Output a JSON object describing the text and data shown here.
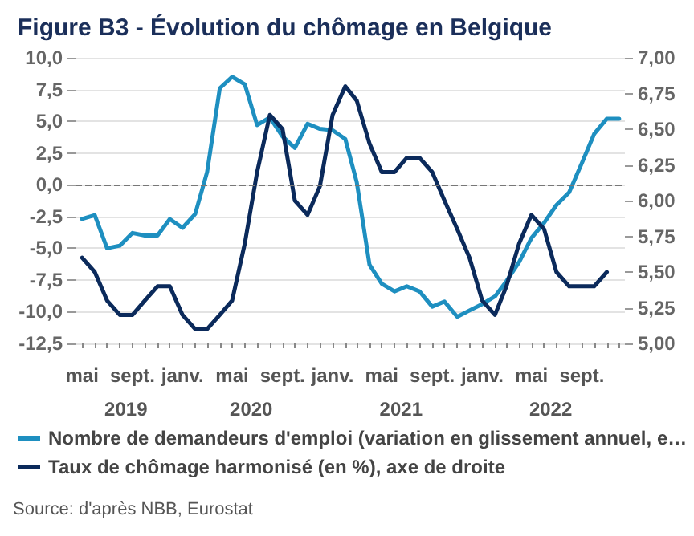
{
  "chart_data": {
    "type": "line",
    "title": "Figure B3 - Évolution du chômage en Belgique",
    "x": [
      "2019-05",
      "2019-06",
      "2019-07",
      "2019-08",
      "2019-09",
      "2019-10",
      "2019-11",
      "2019-12",
      "2020-01",
      "2020-02",
      "2020-03",
      "2020-04",
      "2020-05",
      "2020-06",
      "2020-07",
      "2020-08",
      "2020-09",
      "2020-10",
      "2020-11",
      "2020-12",
      "2021-01",
      "2021-02",
      "2021-03",
      "2021-04",
      "2021-05",
      "2021-06",
      "2021-07",
      "2021-08",
      "2021-09",
      "2021-10",
      "2021-11",
      "2021-12",
      "2022-01",
      "2022-02",
      "2022-03",
      "2022-04",
      "2022-05",
      "2022-06",
      "2022-07",
      "2022-08",
      "2022-09",
      "2022-10",
      "2022-11",
      "2022-12"
    ],
    "xlim": [
      "2019-04-15",
      "2022-12-15"
    ],
    "xticks": [
      {
        "value": "2019-05",
        "label": "mai"
      },
      {
        "value": "2019-09",
        "label": "sept."
      },
      {
        "value": "2020-01",
        "label": "janv."
      },
      {
        "value": "2020-05",
        "label": "mai"
      },
      {
        "value": "2020-09",
        "label": "sept."
      },
      {
        "value": "2021-01",
        "label": "janv."
      },
      {
        "value": "2021-05",
        "label": "mai"
      },
      {
        "value": "2021-09",
        "label": "sept."
      },
      {
        "value": "2022-01",
        "label": "janv."
      },
      {
        "value": "2022-05",
        "label": "mai"
      },
      {
        "value": "2022-09",
        "label": "sept."
      }
    ],
    "series": [
      {
        "name": "Nombre de demandeurs d'emploi (variation en glissement annuel, e…",
        "color": "#1e8fc0",
        "values": [
          -2.7,
          -2.4,
          -5.0,
          -4.8,
          -3.8,
          -4.0,
          -4.0,
          -2.7,
          -3.4,
          -2.3,
          1.0,
          7.6,
          8.5,
          7.9,
          4.7,
          5.3,
          3.8,
          2.9,
          4.8,
          4.4,
          4.3,
          3.6,
          0.2,
          -6.3,
          -7.8,
          -8.4,
          -8.0,
          -8.4,
          -9.6,
          -9.2,
          -10.4,
          -9.9,
          -9.4,
          -8.8,
          -7.6,
          -6.1,
          -4.2,
          -3.0,
          -1.6,
          -0.6,
          1.7,
          4.0,
          5.2,
          5.2
        ]
      },
      {
        "name": "Taux de chômage harmonisé (en %), axe de droite",
        "color": "#0b2a5b",
        "axis": "y2",
        "values": [
          5.6,
          5.5,
          5.3,
          5.2,
          5.2,
          5.3,
          5.4,
          5.4,
          5.2,
          5.1,
          5.1,
          5.2,
          5.3,
          5.7,
          6.2,
          6.6,
          6.5,
          6.0,
          5.9,
          6.1,
          6.6,
          6.8,
          6.7,
          6.4,
          6.2,
          6.2,
          6.3,
          6.3,
          6.2,
          6.0,
          5.8,
          5.6,
          5.3,
          5.2,
          5.4,
          5.7,
          5.9,
          5.8,
          5.5,
          5.4,
          5.4,
          5.4,
          5.5,
          null
        ]
      }
    ],
    "ylim": [
      -12.5,
      10
    ],
    "yticks": [
      {
        "value": -12.5,
        "label": "-12,5"
      },
      {
        "value": -10,
        "label": "-10,0"
      },
      {
        "value": -7.5,
        "label": "-7,5"
      },
      {
        "value": -5,
        "label": "-5,0"
      },
      {
        "value": -2.5,
        "label": "-2,5"
      },
      {
        "value": 0,
        "label": "0,0"
      },
      {
        "value": 2.5,
        "label": "2,5"
      },
      {
        "value": 5,
        "label": "5,0"
      },
      {
        "value": 7.5,
        "label": "7,5"
      },
      {
        "value": 10,
        "label": "10,0"
      }
    ],
    "y2lim": [
      5,
      7
    ],
    "y2ticks": [
      {
        "value": 5,
        "label": "5,00"
      },
      {
        "value": 5.25,
        "label": "5,25"
      },
      {
        "value": 5.5,
        "label": "5,50"
      },
      {
        "value": 5.75,
        "label": "5,75"
      },
      {
        "value": 6,
        "label": "6,00"
      },
      {
        "value": 6.25,
        "label": "6,25"
      },
      {
        "value": 6.5,
        "label": "6,50"
      },
      {
        "value": 6.75,
        "label": "6,75"
      },
      {
        "value": 7,
        "label": "7,00"
      }
    ],
    "ref_lines": [
      {
        "axis": "y",
        "value": 0,
        "color": "#777777",
        "line_style": "dashed"
      }
    ],
    "annotations": [
      "2019",
      "2020",
      "2021",
      "2022",
      "Source: d'après NBB, Eurostat"
    ],
    "grid": "y",
    "legend": "bottom",
    "marker": "none",
    "line_style": "solid"
  }
}
